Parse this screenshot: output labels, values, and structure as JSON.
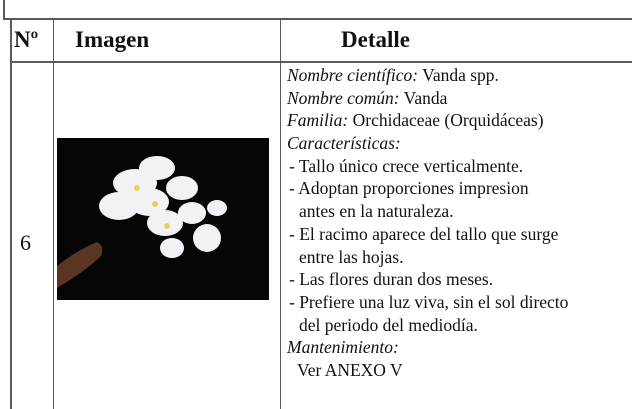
{
  "table": {
    "header": [
      "Nº",
      "Imagen",
      "Detalle"
    ],
    "row": {
      "number": "6",
      "scientific_name": {
        "label": "Nombre científico:",
        "text": "Vanda spp."
      },
      "common_name": {
        "label": "Nombre común:",
        "text": "Vanda"
      },
      "family": {
        "label": "Familia:",
        "text": "Orchidaceae (Orquidáceas)"
      },
      "characteristics": {
        "label": "Características:",
        "items": [
          [
            "- Tallo único crece verticalmente."
          ],
          [
            "-  Adoptan proporciones impresion",
            "antes en la naturaleza."
          ],
          [
            "- El racimo aparece del tallo que surge",
            "entre las hojas."
          ],
          [
            "- Las flores duran dos meses."
          ],
          [
            "- Prefiere una luz viva, sin el sol directo",
            "del periodo del mediodía."
          ]
        ]
      },
      "maintenance": {
        "label": "Mantenimiento:",
        "text": "Ver ANEXO V"
      }
    }
  }
}
